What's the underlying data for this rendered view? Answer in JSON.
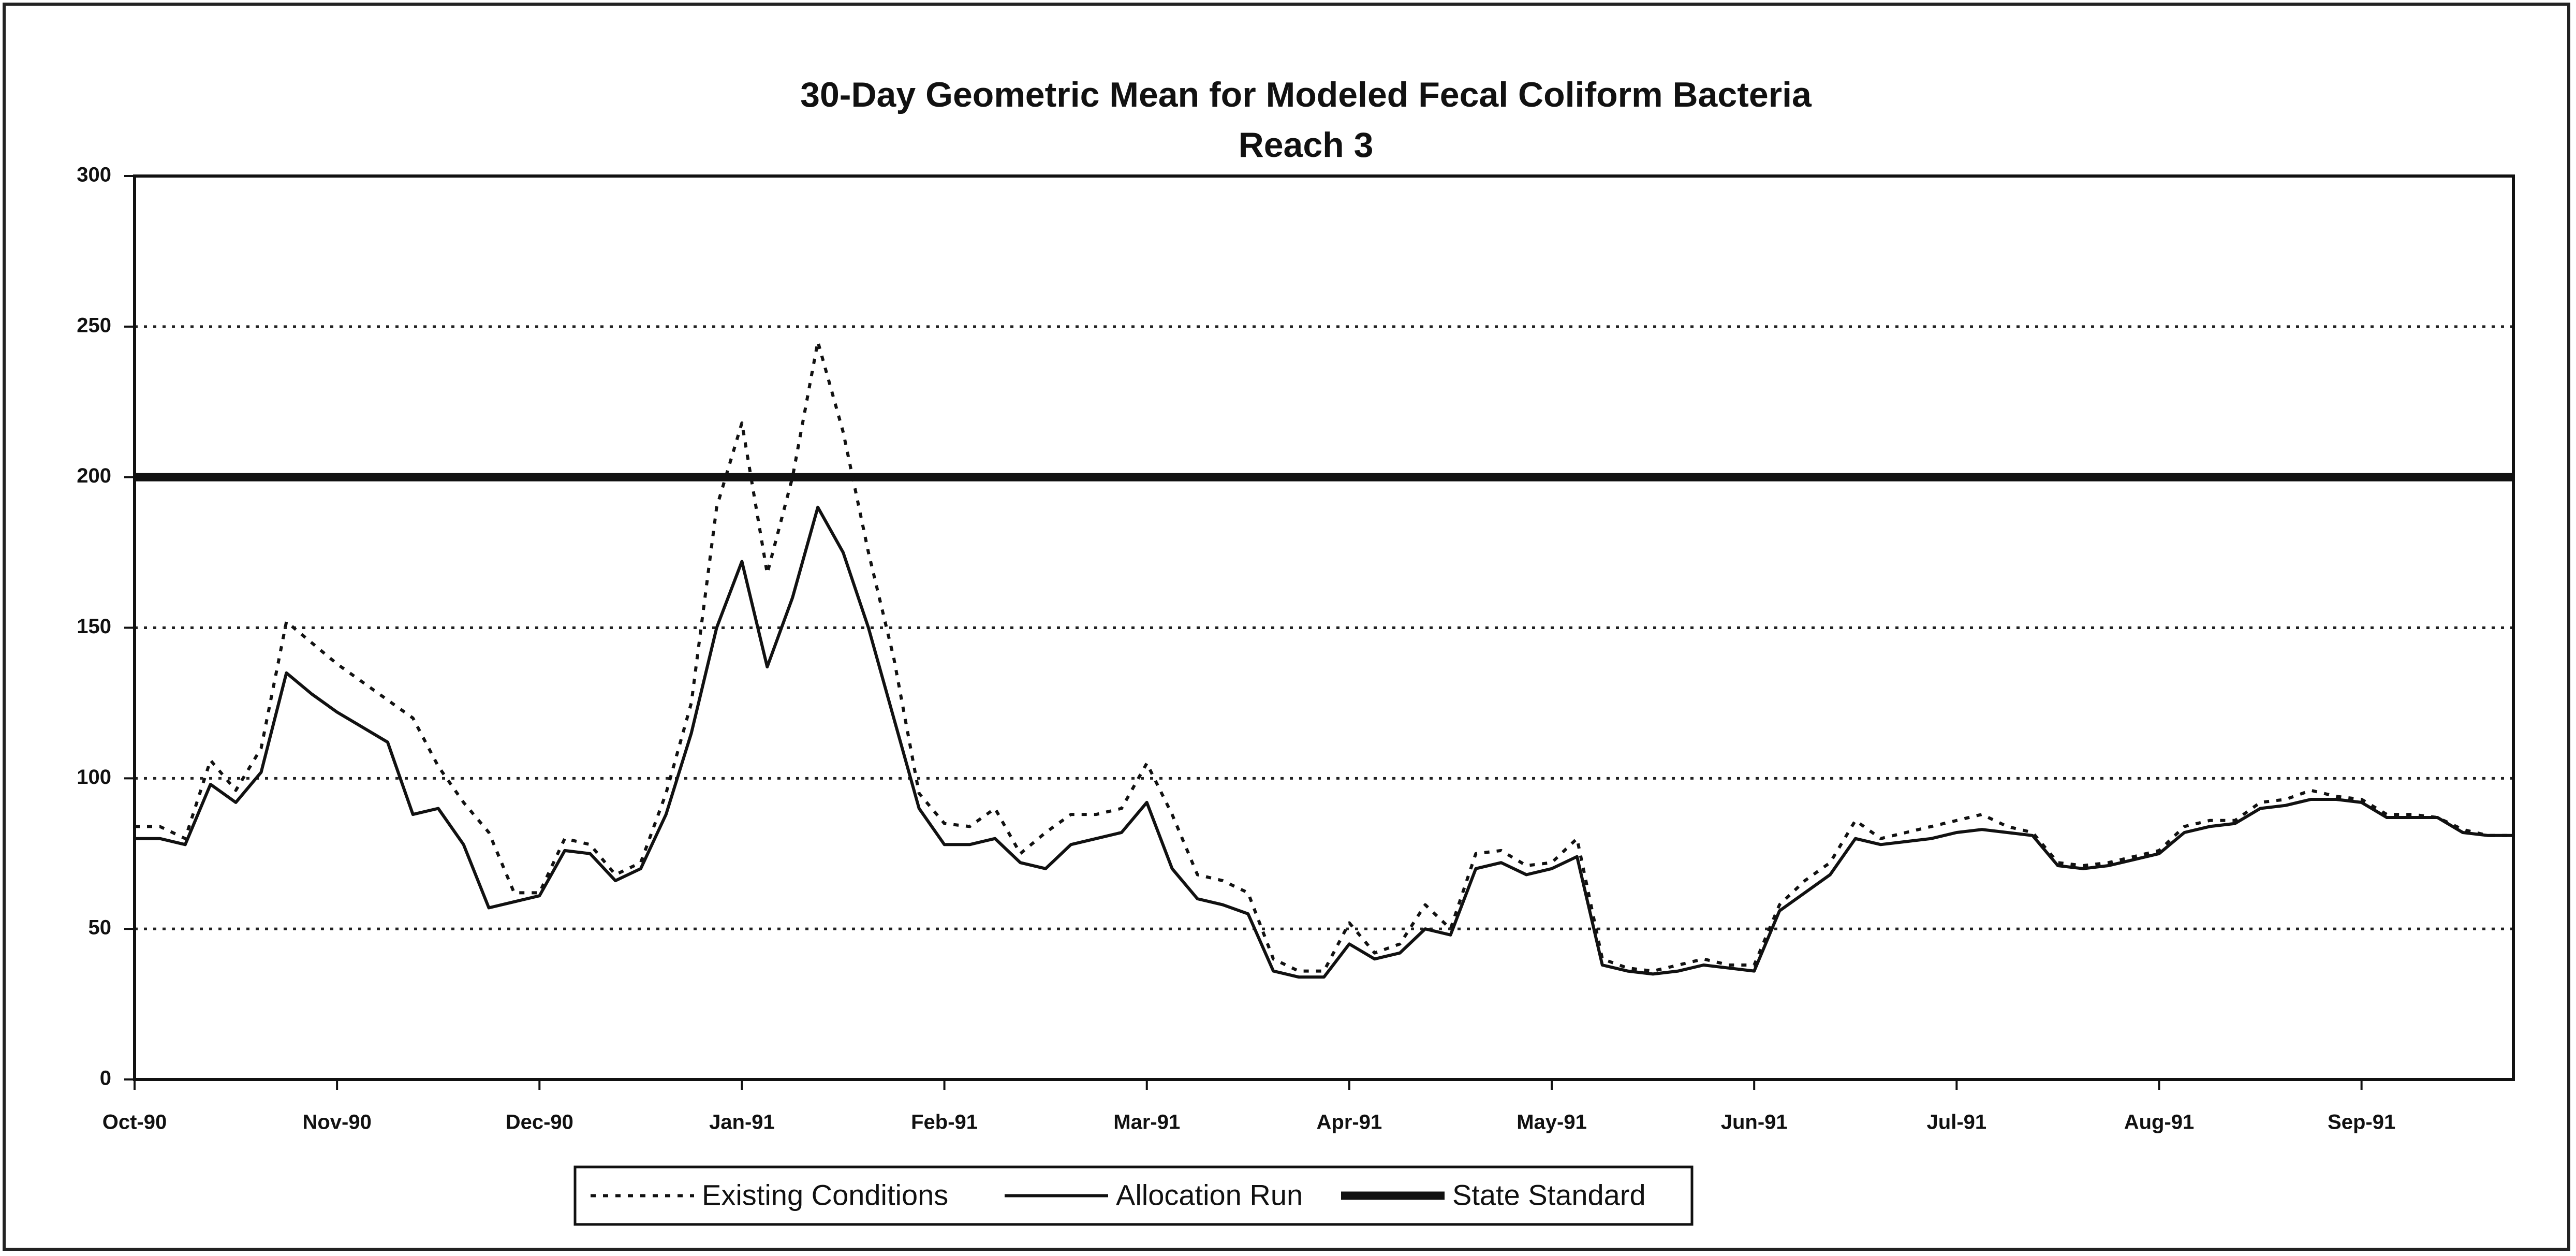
{
  "chart_data": {
    "type": "line",
    "title": "30-Day Geometric Mean for Modeled Fecal Coliform Bacteria",
    "subtitle": "Reach 3",
    "categories": [
      "Oct-90",
      null,
      null,
      null,
      null,
      null,
      null,
      null,
      "Nov-90",
      null,
      null,
      null,
      null,
      null,
      null,
      null,
      "Dec-90",
      null,
      null,
      null,
      null,
      null,
      null,
      null,
      "Jan-91",
      null,
      null,
      null,
      null,
      null,
      null,
      null,
      "Feb-91",
      null,
      null,
      null,
      null,
      null,
      null,
      null,
      "Mar-91",
      null,
      null,
      null,
      null,
      null,
      null,
      null,
      "Apr-91",
      null,
      null,
      null,
      null,
      null,
      null,
      null,
      "May-91",
      null,
      null,
      null,
      null,
      null,
      null,
      null,
      "Jun-91",
      null,
      null,
      null,
      null,
      null,
      null,
      null,
      "Jul-91",
      null,
      null,
      null,
      null,
      null,
      null,
      null,
      "Aug-91",
      null,
      null,
      null,
      null,
      null,
      null,
      null,
      "Sep-91",
      null,
      null,
      null,
      null,
      null,
      null
    ],
    "series": [
      {
        "name": "Existing Conditions",
        "color": "#111111",
        "dash": "dotted",
        "width": 6,
        "values": [
          84,
          84,
          80,
          106,
          96,
          110,
          152,
          145,
          138,
          132,
          126,
          120,
          104,
          92,
          82,
          62,
          62,
          80,
          78,
          68,
          72,
          95,
          125,
          190,
          218,
          168,
          200,
          245,
          215,
          175,
          140,
          95,
          85,
          84,
          90,
          75,
          82,
          88,
          88,
          90,
          105,
          88,
          68,
          66,
          62,
          40,
          36,
          36,
          52,
          42,
          45,
          58,
          50,
          75,
          76,
          71,
          72,
          80,
          40,
          37,
          36,
          38,
          40,
          38,
          38,
          58,
          66,
          72,
          86,
          80,
          82,
          84,
          86,
          88,
          84,
          82,
          72,
          71,
          72,
          74,
          76,
          84,
          86,
          86,
          92,
          93,
          96,
          94,
          93,
          88,
          88,
          87,
          83,
          81,
          81
        ]
      },
      {
        "name": "Allocation Run",
        "color": "#111111",
        "dash": "solid",
        "width": 6,
        "values": [
          80,
          80,
          78,
          98,
          92,
          102,
          135,
          128,
          122,
          117,
          112,
          88,
          90,
          78,
          57,
          59,
          61,
          76,
          75,
          66,
          70,
          88,
          115,
          150,
          172,
          137,
          160,
          190,
          175,
          150,
          120,
          90,
          78,
          78,
          80,
          72,
          70,
          78,
          80,
          82,
          92,
          70,
          60,
          58,
          55,
          36,
          34,
          34,
          45,
          40,
          42,
          50,
          48,
          70,
          72,
          68,
          70,
          74,
          38,
          36,
          35,
          36,
          38,
          37,
          36,
          56,
          62,
          68,
          80,
          78,
          79,
          80,
          82,
          83,
          82,
          81,
          71,
          70,
          71,
          73,
          75,
          82,
          84,
          85,
          90,
          91,
          93,
          93,
          92,
          87,
          87,
          87,
          82,
          81,
          81
        ]
      },
      {
        "name": "State Standard",
        "color": "#111111",
        "dash": "solid",
        "width": 16,
        "values": [
          200,
          200,
          200,
          200,
          200,
          200,
          200,
          200,
          200,
          200,
          200,
          200,
          200,
          200,
          200,
          200,
          200,
          200,
          200,
          200,
          200,
          200,
          200,
          200,
          200,
          200,
          200,
          200,
          200,
          200,
          200,
          200,
          200,
          200,
          200,
          200,
          200,
          200,
          200,
          200,
          200,
          200,
          200,
          200,
          200,
          200,
          200,
          200,
          200,
          200,
          200,
          200,
          200,
          200,
          200,
          200,
          200,
          200,
          200,
          200,
          200,
          200,
          200,
          200,
          200,
          200,
          200,
          200,
          200,
          200,
          200,
          200,
          200,
          200,
          200,
          200,
          200,
          200,
          200,
          200,
          200,
          200,
          200,
          200,
          200,
          200,
          200,
          200,
          200,
          200,
          200,
          200,
          200,
          200,
          200
        ]
      }
    ],
    "ylim": [
      0,
      300
    ],
    "yticks": [
      0,
      50,
      100,
      150,
      200,
      250,
      300
    ],
    "grid": true,
    "legend": "bottom"
  }
}
